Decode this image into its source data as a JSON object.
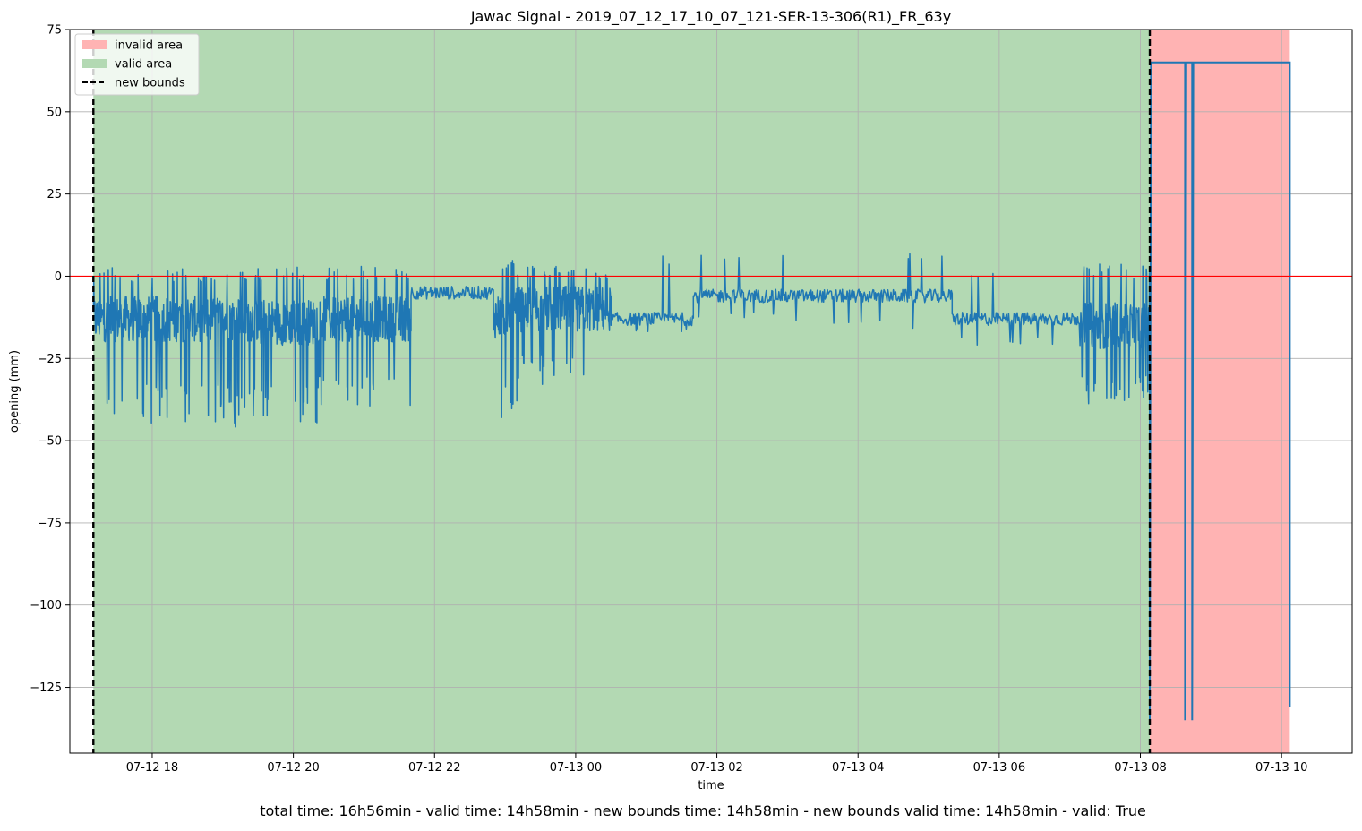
{
  "chart_data": {
    "type": "line",
    "title": "Jawac Signal - 2019_07_12_17_10_07_121-SER-13-306(R1)_FR_63y",
    "xlabel": "time",
    "ylabel": "opening (mm)",
    "x_unit": "datetime",
    "xlim": [
      "2019-07-12 16:50",
      "2019-07-13 11:00"
    ],
    "ylim": [
      -145,
      75
    ],
    "x_ticks": [
      {
        "t": "2019-07-12 18:00",
        "label": "07-12 18"
      },
      {
        "t": "2019-07-12 20:00",
        "label": "07-12 20"
      },
      {
        "t": "2019-07-12 22:00",
        "label": "07-12 22"
      },
      {
        "t": "2019-07-13 00:00",
        "label": "07-13 00"
      },
      {
        "t": "2019-07-13 02:00",
        "label": "07-13 02"
      },
      {
        "t": "2019-07-13 04:00",
        "label": "07-13 04"
      },
      {
        "t": "2019-07-13 06:00",
        "label": "07-13 06"
      },
      {
        "t": "2019-07-13 08:00",
        "label": "07-13 08"
      },
      {
        "t": "2019-07-13 10:00",
        "label": "07-13 10"
      }
    ],
    "y_ticks": [
      {
        "v": 75,
        "label": "75"
      },
      {
        "v": 50,
        "label": "50"
      },
      {
        "v": 25,
        "label": "25"
      },
      {
        "v": 0,
        "label": "0"
      },
      {
        "v": -25,
        "label": "−25"
      },
      {
        "v": -50,
        "label": "−50"
      },
      {
        "v": -75,
        "label": "−75"
      },
      {
        "v": -100,
        "label": "−100"
      },
      {
        "v": -125,
        "label": "−125"
      }
    ],
    "grid": true,
    "legend_position": "top-left",
    "legend": [
      {
        "label": "invalid area",
        "kind": "patch",
        "color": "#ffb3b3"
      },
      {
        "label": "valid area",
        "kind": "patch",
        "color": "#b3d9b3"
      },
      {
        "label": "new bounds",
        "kind": "dashed-line",
        "color": "#000000"
      }
    ],
    "reference_line": {
      "y": 0,
      "color": "#ff0000"
    },
    "valid_area": {
      "start": "2019-07-12 17:10",
      "end": "2019-07-13 08:08",
      "color": "#b3d9b3"
    },
    "invalid_area": {
      "start": "2019-07-13 08:08",
      "end": "2019-07-13 10:07",
      "color": "#ffb3b3"
    },
    "new_bounds": [
      "2019-07-12 17:10",
      "2019-07-13 08:08"
    ],
    "series": [
      {
        "color": "#1f77b4",
        "segments": [
          {
            "start": "2019-07-12 17:10",
            "end": "2019-07-12 19:30",
            "base": -13,
            "low": -46,
            "high": 3
          },
          {
            "start": "2019-07-12 19:30",
            "end": "2019-07-12 20:20",
            "base": -14,
            "low": -45,
            "high": 4
          },
          {
            "start": "2019-07-12 20:20",
            "end": "2019-07-12 21:40",
            "base": -13,
            "low": -41,
            "high": 3
          },
          {
            "start": "2019-07-12 21:40",
            "end": "2019-07-12 22:50",
            "base": -5,
            "low": -7,
            "high": -3
          },
          {
            "start": "2019-07-12 22:50",
            "end": "2019-07-12 23:10",
            "base": -12,
            "low": -45,
            "high": 7
          },
          {
            "start": "2019-07-12 23:10",
            "end": "2019-07-13 00:30",
            "base": -10,
            "low": -33,
            "high": 3
          },
          {
            "start": "2019-07-13 00:30",
            "end": "2019-07-13 01:40",
            "base": -13,
            "low": -17,
            "high": 7
          },
          {
            "start": "2019-07-13 01:40",
            "end": "2019-07-13 03:20",
            "base": -6,
            "low": -14,
            "high": 7
          },
          {
            "start": "2019-07-13 03:20",
            "end": "2019-07-13 05:20",
            "base": -6,
            "low": -17,
            "high": 9
          },
          {
            "start": "2019-07-13 05:20",
            "end": "2019-07-13 07:10",
            "base": -13,
            "low": -22,
            "high": 1
          },
          {
            "start": "2019-07-13 07:10",
            "end": "2019-07-13 08:08",
            "base": -15,
            "low": -39,
            "high": 4
          }
        ],
        "tail": [
          {
            "x": "2019-07-13 08:08",
            "y": -17
          },
          {
            "x": "2019-07-13 08:08",
            "y": -135
          },
          {
            "x": "2019-07-13 08:09",
            "y": 65
          },
          {
            "x": "2019-07-13 08:38",
            "y": 65
          },
          {
            "x": "2019-07-13 08:38",
            "y": -135
          },
          {
            "x": "2019-07-13 08:39",
            "y": 65
          },
          {
            "x": "2019-07-13 08:44",
            "y": 65
          },
          {
            "x": "2019-07-13 08:44",
            "y": -135
          },
          {
            "x": "2019-07-13 08:45",
            "y": 65
          },
          {
            "x": "2019-07-13 10:07",
            "y": 65
          },
          {
            "x": "2019-07-13 10:07",
            "y": -131
          }
        ]
      }
    ],
    "footer": "total time: 16h56min - valid time: 14h58min - new bounds time: 14h58min - new bounds valid time: 14h58min - valid: True"
  }
}
